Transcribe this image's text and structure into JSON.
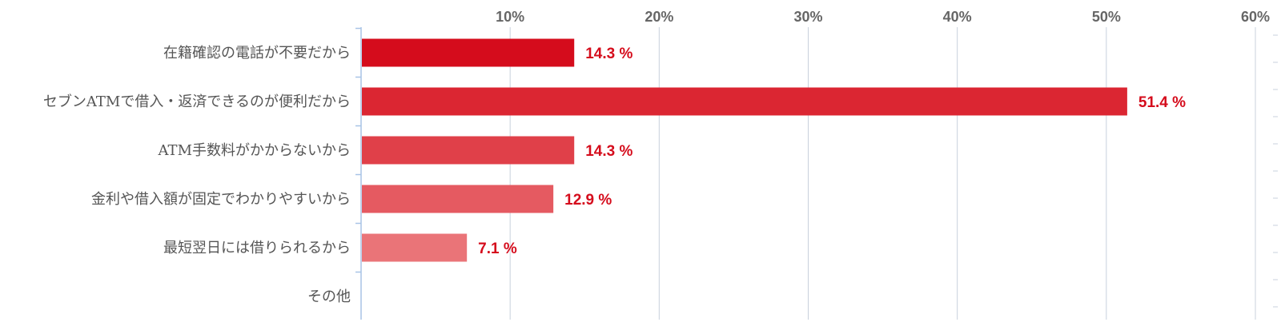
{
  "chart_data": {
    "type": "bar",
    "orientation": "horizontal",
    "title": "",
    "xlabel": "",
    "ylabel": "",
    "categories": [
      "在籍確認の電話が不要だから",
      "セブンATMで借入・返済できるのが便利だから",
      "ATM手数料がかからないから",
      "金利や借入額が固定でわかりやすいから",
      "最短翌日には借りられるから",
      "その他"
    ],
    "values": [
      14.3,
      51.4,
      14.3,
      12.9,
      7.1,
      null
    ],
    "value_labels": [
      "14.3 %",
      "51.4 %",
      "14.3 %",
      "12.9 %",
      "7.1 %",
      ""
    ],
    "bar_colors": [
      "#d50c1c",
      "#db2632",
      "#e04049",
      "#e55a61",
      "#ea7478",
      "#ef8e91"
    ],
    "value_label_color": "#d50c1c",
    "xlim": [
      0,
      60
    ],
    "x_ticks": [
      10,
      20,
      30,
      40,
      50,
      60
    ],
    "x_tick_labels": [
      "10%",
      "20%",
      "30%",
      "40%",
      "50%",
      "60%"
    ],
    "x_axis_position": "top",
    "grid": true,
    "grid_axis": "x",
    "grid_color": "#c8d0dc",
    "axis_color": "#a8c4e6",
    "legend": false
  }
}
